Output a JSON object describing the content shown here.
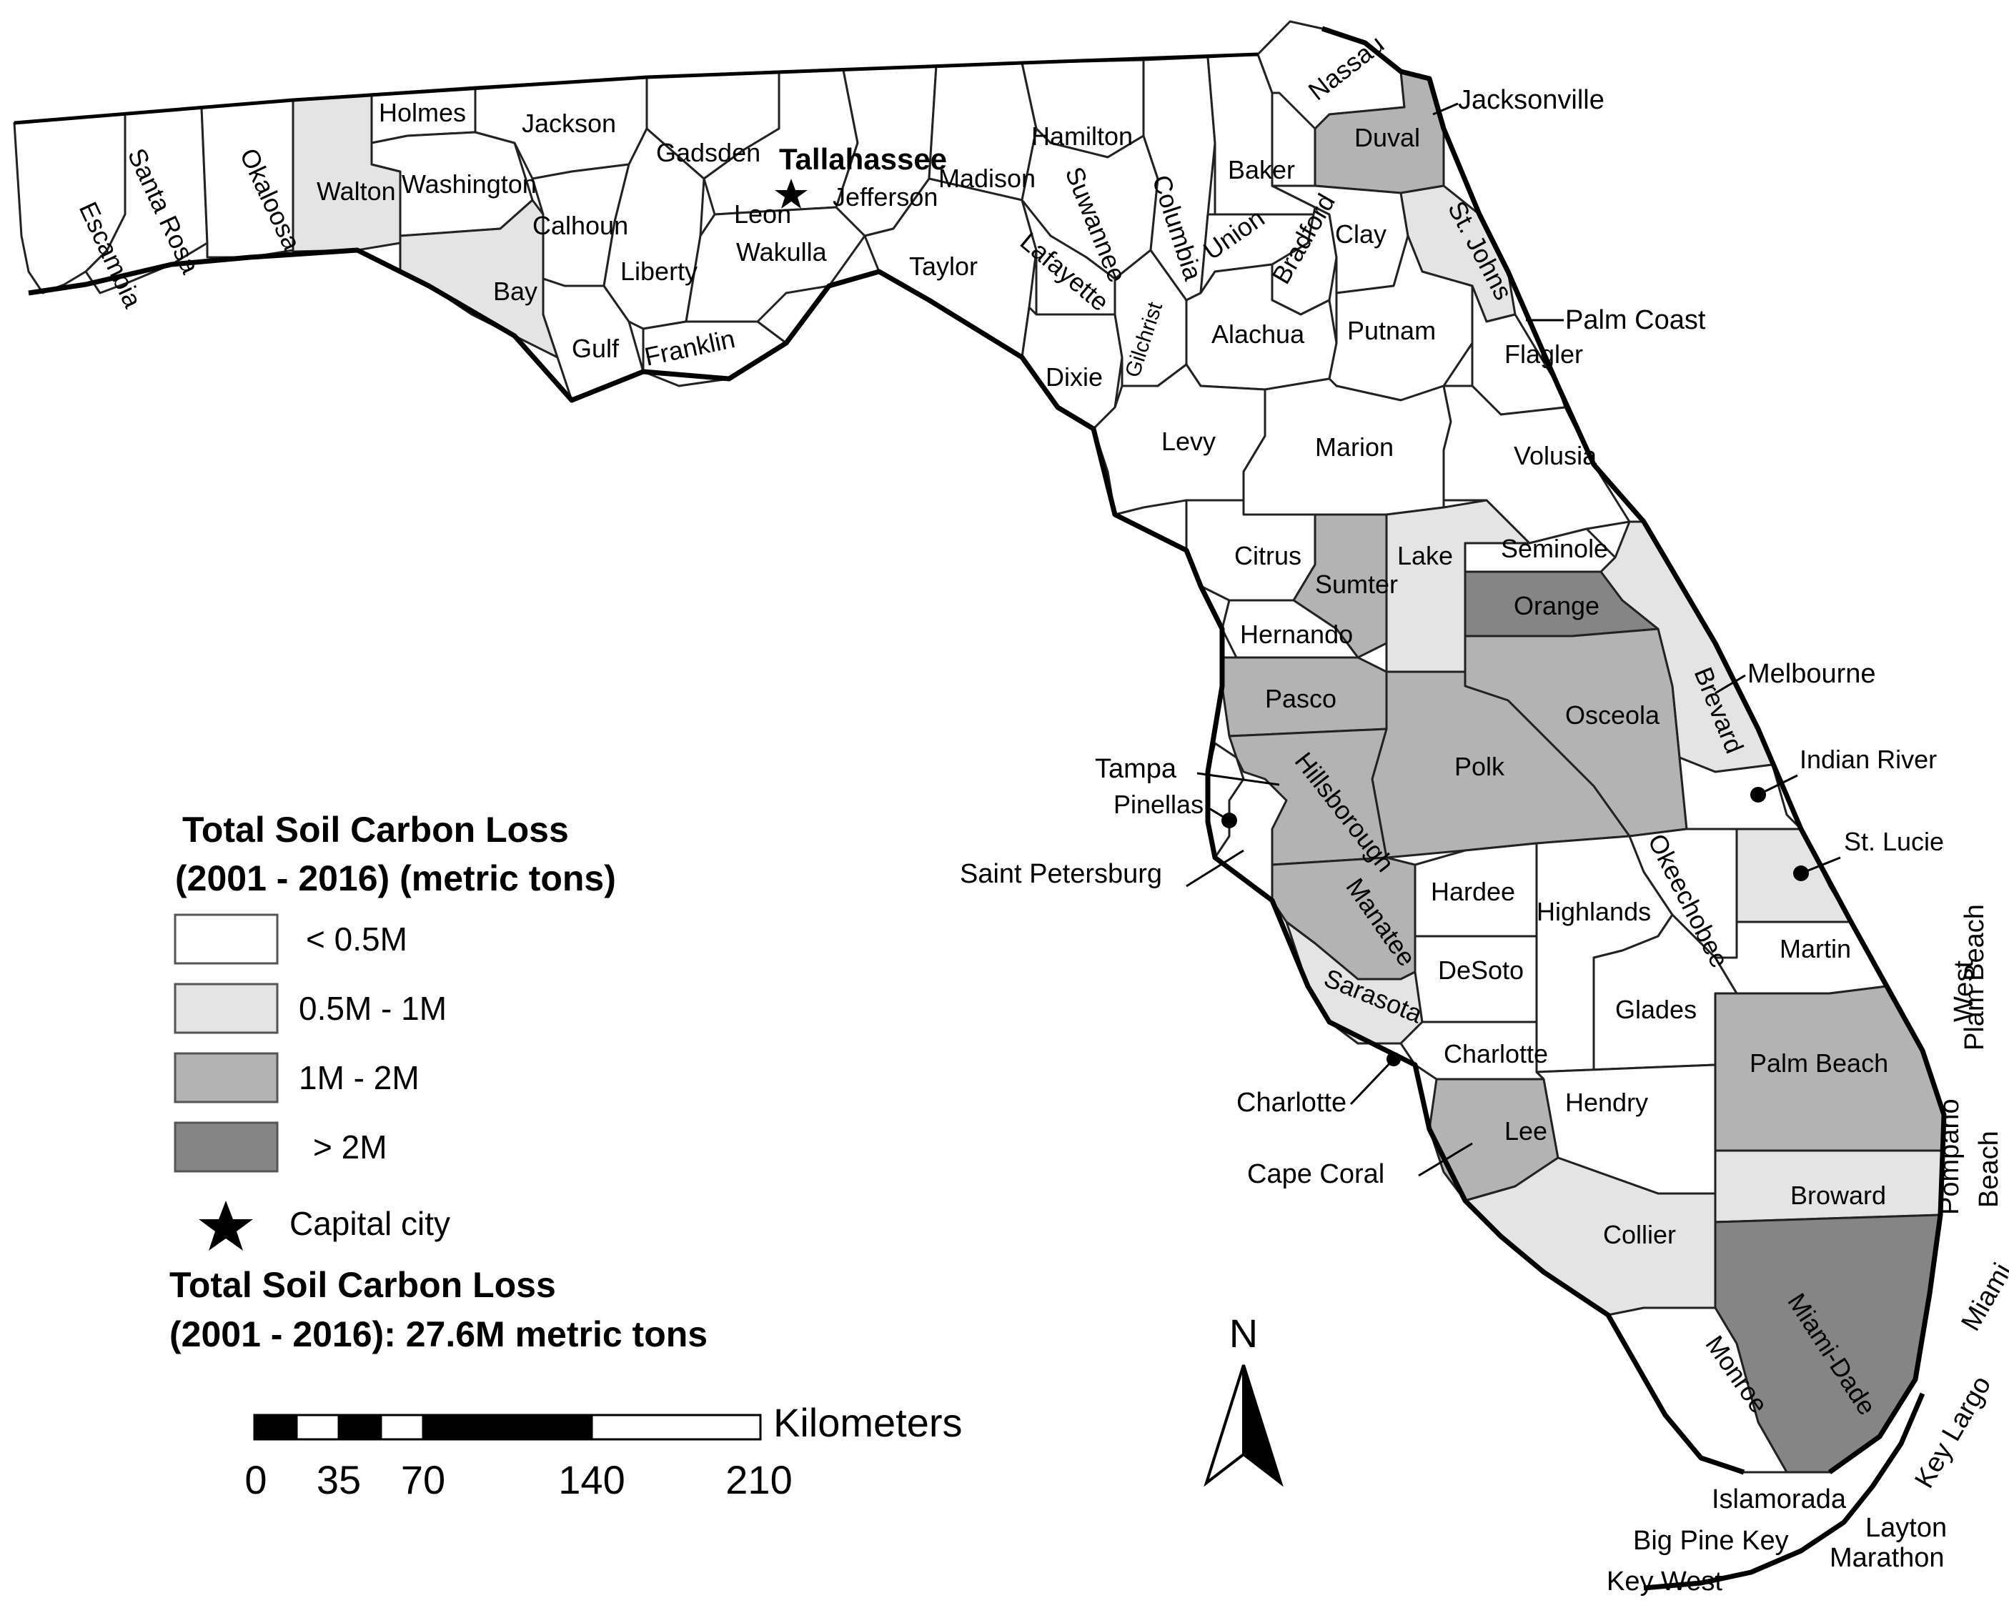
{
  "colors": {
    "lt_0_5M": "#ffffff",
    "c0_5_1M": "#e4e4e4",
    "c1_2M": "#b3b3b3",
    "gt_2M": "#858585"
  },
  "capital": {
    "name": "Tallahassee",
    "icon": "star-icon"
  },
  "counties": [
    {
      "name": "Escambia",
      "class": "lt_0_5M"
    },
    {
      "name": "Santa Rosa",
      "class": "lt_0_5M"
    },
    {
      "name": "Okaloosa",
      "class": "lt_0_5M"
    },
    {
      "name": "Walton",
      "class": "c0_5_1M"
    },
    {
      "name": "Holmes",
      "class": "lt_0_5M"
    },
    {
      "name": "Washington",
      "class": "lt_0_5M"
    },
    {
      "name": "Bay",
      "class": "c0_5_1M"
    },
    {
      "name": "Jackson",
      "class": "lt_0_5M"
    },
    {
      "name": "Calhoun",
      "class": "lt_0_5M"
    },
    {
      "name": "Gulf",
      "class": "lt_0_5M"
    },
    {
      "name": "Liberty",
      "class": "lt_0_5M"
    },
    {
      "name": "Franklin",
      "class": "lt_0_5M"
    },
    {
      "name": "Gadsden",
      "class": "lt_0_5M"
    },
    {
      "name": "Leon",
      "class": "lt_0_5M"
    },
    {
      "name": "Wakulla",
      "class": "lt_0_5M"
    },
    {
      "name": "Jefferson",
      "class": "lt_0_5M"
    },
    {
      "name": "Madison",
      "class": "lt_0_5M"
    },
    {
      "name": "Taylor",
      "class": "lt_0_5M"
    },
    {
      "name": "Hamilton",
      "class": "lt_0_5M"
    },
    {
      "name": "Suwannee",
      "class": "lt_0_5M"
    },
    {
      "name": "Lafayette",
      "class": "lt_0_5M"
    },
    {
      "name": "Dixie",
      "class": "lt_0_5M"
    },
    {
      "name": "Columbia",
      "class": "lt_0_5M"
    },
    {
      "name": "Gilchrist",
      "class": "lt_0_5M"
    },
    {
      "name": "Baker",
      "class": "lt_0_5M"
    },
    {
      "name": "Union",
      "class": "lt_0_5M"
    },
    {
      "name": "Bradford",
      "class": "lt_0_5M"
    },
    {
      "name": "Alachua",
      "class": "lt_0_5M"
    },
    {
      "name": "Nassau",
      "class": "lt_0_5M"
    },
    {
      "name": "Duval",
      "class": "c1_2M"
    },
    {
      "name": "Clay",
      "class": "lt_0_5M"
    },
    {
      "name": "St. Johns",
      "class": "c0_5_1M"
    },
    {
      "name": "Putnam",
      "class": "lt_0_5M"
    },
    {
      "name": "Flagler",
      "class": "lt_0_5M"
    },
    {
      "name": "Levy",
      "class": "lt_0_5M"
    },
    {
      "name": "Marion",
      "class": "lt_0_5M"
    },
    {
      "name": "Volusia",
      "class": "lt_0_5M"
    },
    {
      "name": "Citrus",
      "class": "lt_0_5M"
    },
    {
      "name": "Sumter",
      "class": "c1_2M"
    },
    {
      "name": "Lake",
      "class": "c0_5_1M"
    },
    {
      "name": "Seminole",
      "class": "lt_0_5M"
    },
    {
      "name": "Orange",
      "class": "gt_2M"
    },
    {
      "name": "Hernando",
      "class": "lt_0_5M"
    },
    {
      "name": "Pasco",
      "class": "c1_2M"
    },
    {
      "name": "Brevard",
      "class": "c0_5_1M"
    },
    {
      "name": "Osceola",
      "class": "c1_2M"
    },
    {
      "name": "Polk",
      "class": "c1_2M"
    },
    {
      "name": "Hillsborough",
      "class": "c1_2M"
    },
    {
      "name": "Pinellas",
      "class": "lt_0_5M"
    },
    {
      "name": "Indian River",
      "class": "lt_0_5M"
    },
    {
      "name": "Manatee",
      "class": "c1_2M"
    },
    {
      "name": "Hardee",
      "class": "lt_0_5M"
    },
    {
      "name": "Highlands",
      "class": "lt_0_5M"
    },
    {
      "name": "Okeechobee",
      "class": "lt_0_5M"
    },
    {
      "name": "St. Lucie",
      "class": "c0_5_1M"
    },
    {
      "name": "Sarasota",
      "class": "c0_5_1M"
    },
    {
      "name": "DeSoto",
      "class": "lt_0_5M"
    },
    {
      "name": "Martin",
      "class": "lt_0_5M"
    },
    {
      "name": "Glades",
      "class": "lt_0_5M"
    },
    {
      "name": "Charlotte",
      "class": "lt_0_5M"
    },
    {
      "name": "Palm Beach",
      "class": "c1_2M"
    },
    {
      "name": "Lee",
      "class": "c1_2M"
    },
    {
      "name": "Hendry",
      "class": "lt_0_5M"
    },
    {
      "name": "Broward",
      "class": "c0_5_1M"
    },
    {
      "name": "Collier",
      "class": "c0_5_1M"
    },
    {
      "name": "Miami-Dade",
      "class": "gt_2M"
    },
    {
      "name": "Monroe",
      "class": "lt_0_5M"
    }
  ],
  "cities": {
    "tallahassee": "Tallahassee",
    "jacksonville": "Jacksonville",
    "palm_coast": "Palm Coast",
    "melbourne": "Melbourne",
    "tampa": "Tampa",
    "saint_petersburg": "Saint Petersburg",
    "charlotte": "Charlotte",
    "cape_coral": "Cape Coral",
    "west_plam_beach_1": "West",
    "west_plam_beach_2": "Plam Beach",
    "pompano_1": "Pompano",
    "pompano_2": "Beach",
    "miami": "Miami",
    "key_largo": "Key Largo",
    "islamorada": "Islamorada",
    "big_pine_key": "Big Pine Key",
    "layton": "Layton",
    "marathon": "Marathon",
    "key_west": "Key West"
  },
  "legend": {
    "title_line1": "Total Soil Carbon Loss",
    "title_line2": "(2001 - 2016) (metric tons)",
    "items": [
      {
        "label": "< 0.5M",
        "class": "lt_0_5M"
      },
      {
        "label": "0.5M - 1M",
        "class": "c0_5_1M"
      },
      {
        "label": "1M - 2M",
        "class": "c1_2M"
      },
      {
        "label": "> 2M",
        "class": "gt_2M"
      }
    ],
    "capital_label": "Capital city",
    "total_line1": "Total Soil Carbon Loss",
    "total_line2": "(2001 - 2016): 27.6M metric tons"
  },
  "scale_bar": {
    "unit": "Kilometers",
    "ticks": [
      "0",
      "35",
      "70",
      "140",
      "210"
    ]
  },
  "north_arrow": {
    "label": "N",
    "icon": "north-arrow-icon"
  }
}
